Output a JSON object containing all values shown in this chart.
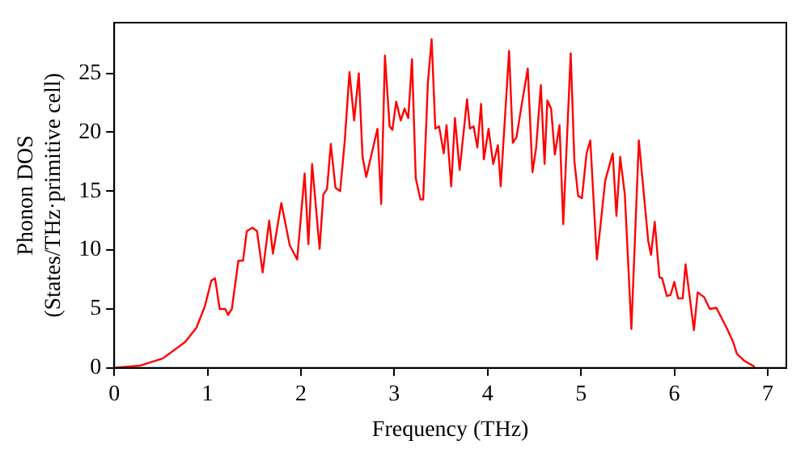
{
  "chart_data": {
    "type": "line",
    "xlabel": "Frequency (THz)",
    "ylabel": "Phonon DOS\n(States/THz·primitive cell)",
    "xlim": [
      0,
      7.2
    ],
    "xticks": [
      0,
      1,
      2,
      3,
      4,
      5,
      6,
      7
    ],
    "ylim": [
      0,
      29.3
    ],
    "yticks": [
      0,
      5,
      10,
      15,
      20,
      25
    ],
    "grid": false,
    "legend": false,
    "marker": "none",
    "line_style": "solid",
    "series": [
      {
        "color": "#ff0000",
        "x": [
          0,
          0.28,
          0.52,
          0.76,
          0.88,
          0.97,
          1.04,
          1.08,
          1.13,
          1.19,
          1.22,
          1.26,
          1.33,
          1.38,
          1.42,
          1.48,
          1.53,
          1.59,
          1.66,
          1.7,
          1.79,
          1.88,
          1.96,
          2.04,
          2.08,
          2.12,
          2.2,
          2.24,
          2.28,
          2.32,
          2.37,
          2.42,
          2.47,
          2.52,
          2.57,
          2.62,
          2.66,
          2.7,
          2.82,
          2.86,
          2.9,
          2.95,
          2.98,
          3.02,
          3.07,
          3.11,
          3.15,
          3.19,
          3.23,
          3.28,
          3.31,
          3.36,
          3.4,
          3.44,
          3.48,
          3.53,
          3.56,
          3.61,
          3.65,
          3.7,
          3.78,
          3.81,
          3.85,
          3.89,
          3.93,
          3.96,
          4.01,
          4.06,
          4.11,
          4.14,
          4.23,
          4.27,
          4.31,
          4.36,
          4.43,
          4.48,
          4.52,
          4.57,
          4.61,
          4.64,
          4.68,
          4.72,
          4.77,
          4.81,
          4.89,
          4.93,
          4.97,
          5.01,
          5.06,
          5.1,
          5.17,
          5.26,
          5.34,
          5.38,
          5.42,
          5.47,
          5.54,
          5.62,
          5.72,
          5.75,
          5.79,
          5.84,
          5.87,
          5.92,
          5.96,
          6.0,
          6.04,
          6.09,
          6.12,
          6.21,
          6.25,
          6.32,
          6.38,
          6.45,
          6.56,
          6.63,
          6.67,
          6.75,
          6.86
        ],
        "values": [
          0,
          0.2,
          0.8,
          2.2,
          3.4,
          5.2,
          7.4,
          7.6,
          5.0,
          5.0,
          4.5,
          5.0,
          9.1,
          9.1,
          11.6,
          11.9,
          11.6,
          8.1,
          12.5,
          9.7,
          14.0,
          10.4,
          9.2,
          16.5,
          10.5,
          17.3,
          10.1,
          14.7,
          15.2,
          19.0,
          15.3,
          15.0,
          19.3,
          25.1,
          21.0,
          25.0,
          17.9,
          16.2,
          20.3,
          13.9,
          26.5,
          20.5,
          20.2,
          22.6,
          21.0,
          22.0,
          21.2,
          26.2,
          16.1,
          14.3,
          14.3,
          24.2,
          27.9,
          20.3,
          20.5,
          18.2,
          20.6,
          15.4,
          21.2,
          16.8,
          22.8,
          20.3,
          20.5,
          18.7,
          22.4,
          17.7,
          20.3,
          17.3,
          18.9,
          15.4,
          26.9,
          19.1,
          19.6,
          22.1,
          25.4,
          16.6,
          18.7,
          24.0,
          17.3,
          22.7,
          22.0,
          18.1,
          20.6,
          12.2,
          26.7,
          17.5,
          14.6,
          14.4,
          18.2,
          19.3,
          9.2,
          15.9,
          18.2,
          12.9,
          17.9,
          14.7,
          3.3,
          19.3,
          10.8,
          9.6,
          12.4,
          7.7,
          7.6,
          6.1,
          6.2,
          7.3,
          5.9,
          5.9,
          8.8,
          3.2,
          6.4,
          6.0,
          5.0,
          5.1,
          3.4,
          2.2,
          1.2,
          0.6,
          0.1
        ]
      }
    ]
  }
}
